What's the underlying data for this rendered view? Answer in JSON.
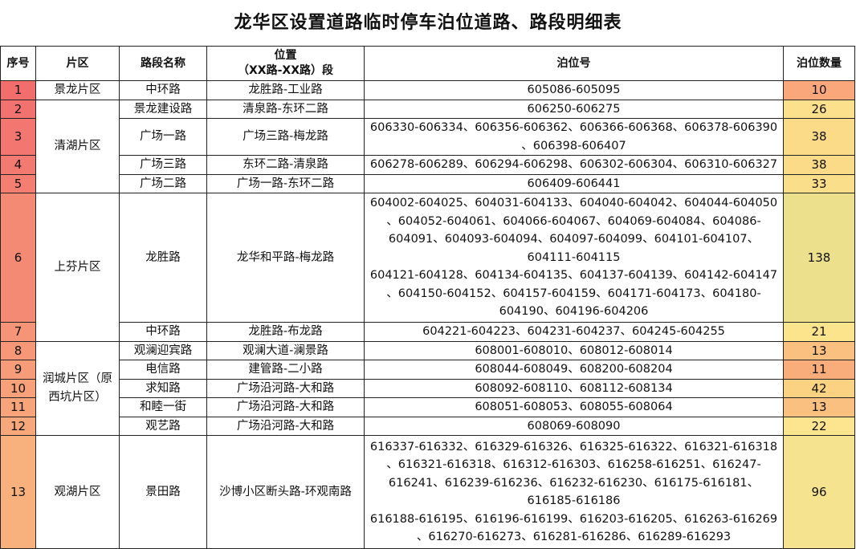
{
  "title": "龙华区设置道路临时停车泊位道路、路段明细表",
  "headers": {
    "seq": "序号",
    "area": "片区",
    "road": "路段名称",
    "location": "位置\n（XX路-XX路）段",
    "berth": "泊位号",
    "count": "泊位数量"
  },
  "areas": [
    "景龙片区",
    "清湖片区",
    "上芬片区",
    "润城片区（原西坑片区）",
    "观湖片区"
  ],
  "rows": [
    {
      "seq": "1",
      "road": "中环路",
      "location": "龙胜路-工业路",
      "berth": "605086-605095",
      "count": "10",
      "seq_color": "#f26e6c",
      "count_color": "#f9a77b"
    },
    {
      "seq": "2",
      "road": "景龙建设路",
      "location": "清泉路-东环二路",
      "berth": "606250-606275",
      "count": "26",
      "seq_color": "#f27270",
      "count_color": "#fce08b"
    },
    {
      "seq": "3",
      "road": "广场一路",
      "location": "广场三路-梅龙路",
      "berth": "606330-606334、606356-606362、606366-606368、606378-606390\n、606398-606407",
      "count": "38",
      "seq_color": "#f37670",
      "count_color": "#fbdb87"
    },
    {
      "seq": "4",
      "road": "广场三路",
      "location": "东环二路-清泉路",
      "berth": "606278-606289、606294-606298、606302-606304、606310-606327",
      "count": "38",
      "seq_color": "#f37a71",
      "count_color": "#fbdb87"
    },
    {
      "seq": "5",
      "road": "广场二路",
      "location": "广场一路-东环二路",
      "berth": "606409-606441",
      "count": "33",
      "seq_color": "#f47e72",
      "count_color": "#fbde89"
    },
    {
      "seq": "6",
      "road": "龙胜路",
      "location": "龙华和平路-梅龙路",
      "berth": "604002-604025、604031-604133、604040-604042、604044-604050\n、604052-604061、604066-604067、604069-604084、604086-\n604091、604093-604094、604097-604099、604101-604107、\n604111-604115\n604121-604128、604134-604135、604137-604139、604142-604147\n、604150-604152、604157-604159、604171-604173、604180-\n604190、604196-604206",
      "count": "138",
      "seq_color": "#f58a74",
      "count_color": "#ece08c"
    },
    {
      "seq": "7",
      "road": "中环路",
      "location": "龙胜路-布龙路",
      "berth": "604221-604223、604231-604237、604245-604255",
      "count": "21",
      "seq_color": "#f59476",
      "count_color": "#fce48d"
    },
    {
      "seq": "8",
      "road": "观澜迎宾路",
      "location": "观澜大道-澜景路",
      "berth": "608001-608010、608012-608014",
      "count": "13",
      "seq_color": "#f69877",
      "count_color": "#f9c07f"
    },
    {
      "seq": "9",
      "road": "电信路",
      "location": "建管路-二小路",
      "berth": "608044-608049、608200-608204",
      "count": "11",
      "seq_color": "#f69c78",
      "count_color": "#f9ad7b"
    },
    {
      "seq": "10",
      "road": "求知路",
      "location": "广场沿河路-大和路",
      "berth": "608092-608110、608112-608134",
      "count": "42",
      "seq_color": "#f7a079",
      "count_color": "#fbd182"
    },
    {
      "seq": "11",
      "road": "和睦一街",
      "location": "广场沿河路-大和路",
      "berth": "608051-608053、608055-608064",
      "count": "13",
      "seq_color": "#f7a47a",
      "count_color": "#f9c07f"
    },
    {
      "seq": "12",
      "road": "观艺路",
      "location": "广场沿河路-大和路",
      "berth": "608069-608090",
      "count": "22",
      "seq_color": "#f7a87b",
      "count_color": "#fce58e"
    },
    {
      "seq": "13",
      "road": "景田路",
      "location": "沙博小区断头路-环观南路",
      "berth": "616337-616332、616329-616326、616325-616322、616321-616318\n、616321-616318、616312-616303、616258-616251、616247-\n616241、616239-616236、616232-616230、616175-616181、\n616185-616186\n616188-616195、616196-616199、616203-616205、616263-616269\n、616270-616273、616281-616286、616289-616293",
      "count": "96",
      "seq_color": "#f8b07c",
      "count_color": "#f6e38f"
    }
  ]
}
